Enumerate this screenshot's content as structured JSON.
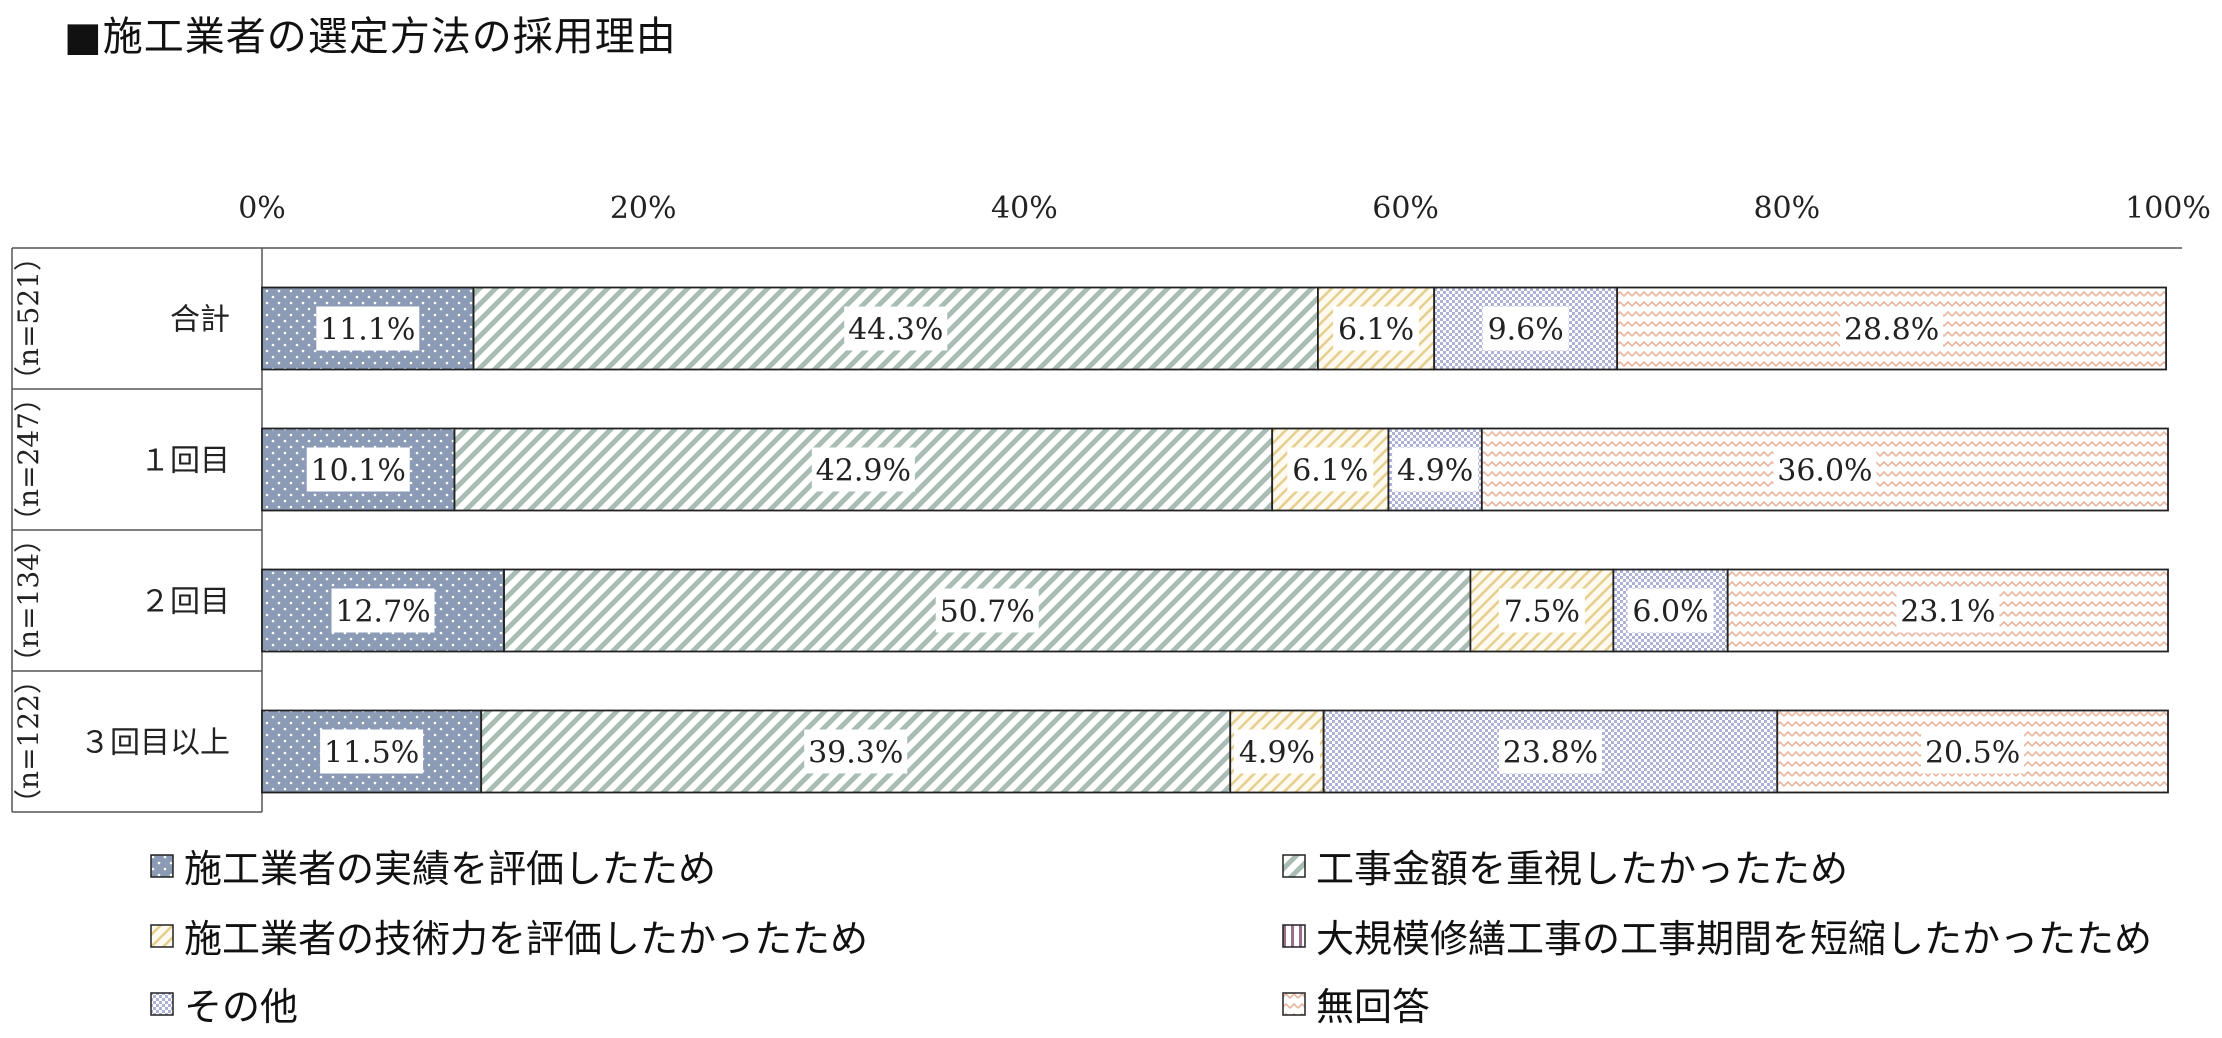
{
  "chart_data": {
    "type": "bar",
    "orientation": "horizontal",
    "stacked": true,
    "percent": true,
    "title": "■施工業者の選定方法の採用理由",
    "xlim": [
      0,
      100
    ],
    "x_ticks": [
      "0%",
      "20%",
      "40%",
      "60%",
      "80%",
      "100%"
    ],
    "categories": [
      "合計",
      "１回目",
      "２回目",
      "３回目以上"
    ],
    "n_labels": [
      "（n=521）",
      "（n=247）",
      "（n=134）",
      "（n=122）"
    ],
    "series": [
      {
        "name": "施工業者の実績を評価したため",
        "values": [
          11.1,
          10.1,
          12.7,
          11.5
        ],
        "labels": [
          "11.1%",
          "10.1%",
          "12.7%",
          "11.5%"
        ],
        "color": "#8b9bb6"
      },
      {
        "name": "工事金額を重視したかったため",
        "values": [
          44.3,
          42.9,
          50.7,
          39.3
        ],
        "labels": [
          "44.3%",
          "42.9%",
          "50.7%",
          "39.3%"
        ],
        "color": "#b9c9c1"
      },
      {
        "name": "施工業者の技術力を評価したかったため",
        "values": [
          6.1,
          6.1,
          7.5,
          4.9
        ],
        "labels": [
          "6.1%",
          "6.1%",
          "7.5%",
          "4.9%"
        ],
        "color": "#ead69b"
      },
      {
        "name": "大規模修繕工事の工事期間を短縮したかったため",
        "values": [
          0,
          0,
          0,
          0
        ],
        "labels": [
          "",
          "",
          "",
          ""
        ],
        "color": "#b58ca6"
      },
      {
        "name": "その他",
        "values": [
          9.6,
          4.9,
          6.0,
          23.8
        ],
        "labels": [
          "9.6%",
          "4.9%",
          "6.0%",
          "23.8%"
        ],
        "color": "#b3b7d8"
      },
      {
        "name": "無回答",
        "values": [
          28.8,
          36.0,
          23.1,
          20.5
        ],
        "labels": [
          "28.8%",
          "36.0%",
          "23.1%",
          "20.5%"
        ],
        "color": "#e8b8a2"
      }
    ],
    "legend_position": "bottom",
    "grid": false
  }
}
